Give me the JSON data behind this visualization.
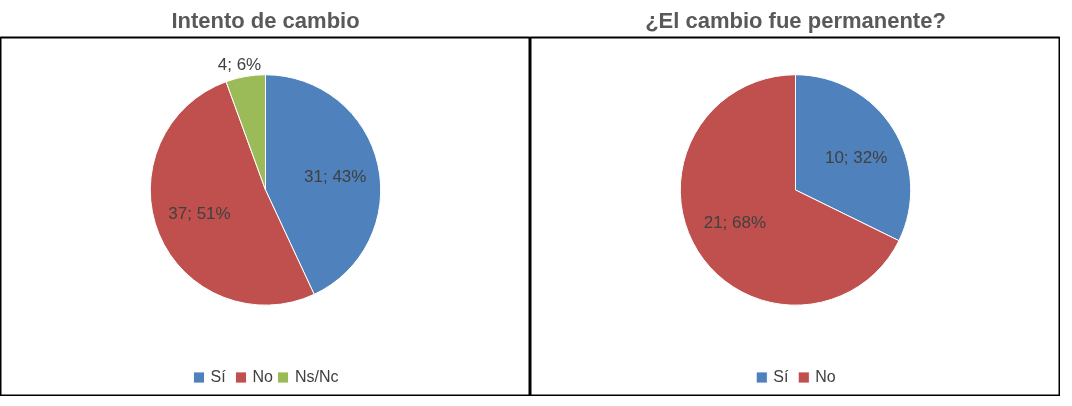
{
  "chart_data": [
    {
      "type": "pie",
      "title": "Intento de cambio",
      "categories": [
        "Sí",
        "No",
        "Ns/Nc"
      ],
      "values": [
        31,
        37,
        4
      ],
      "colors": [
        "#4f81bd",
        "#c0504d",
        "#9bbb59"
      ],
      "value_labels": [
        "31; 43%",
        "37; 51%",
        "4; 6%"
      ],
      "legend": "bottom"
    },
    {
      "type": "pie",
      "title": "¿El cambio fue permanente?",
      "categories": [
        "Sí",
        "No"
      ],
      "values": [
        10,
        21
      ],
      "colors": [
        "#4f81bd",
        "#c0504d"
      ],
      "value_labels": [
        "10; 32%",
        "21; 68%"
      ],
      "legend": "bottom"
    }
  ]
}
